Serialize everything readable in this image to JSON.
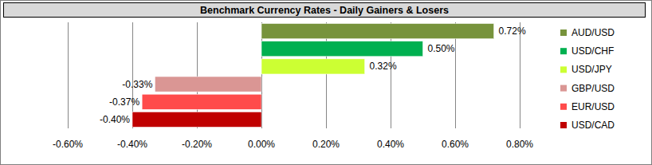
{
  "chart_data": {
    "type": "bar",
    "title": "Benchmark Currency Rates - Daily Gainers & Losers",
    "orientation": "horizontal",
    "categories": [
      "AUD/USD",
      "USD/CHF",
      "USD/JPY",
      "GBP/USD",
      "EUR/USD",
      "USD/CAD"
    ],
    "values": [
      0.72,
      0.5,
      0.32,
      -0.33,
      -0.37,
      -0.4
    ],
    "value_labels": [
      "0.72%",
      "0.50%",
      "0.32%",
      "-0.33%",
      "-0.37%",
      "-0.40%"
    ],
    "colors": [
      "#77933c",
      "#00b050",
      "#ccff33",
      "#da9694",
      "#ff4b4b",
      "#c00000"
    ],
    "xlim": [
      -0.6,
      0.8
    ],
    "xticks": [
      {
        "value": -0.6,
        "label": "-0.60%"
      },
      {
        "value": -0.4,
        "label": "-0.40%"
      },
      {
        "value": -0.2,
        "label": "-0.20%"
      },
      {
        "value": 0,
        "label": "0.00%"
      },
      {
        "value": 0.2,
        "label": "0.20%"
      },
      {
        "value": 0.4,
        "label": "0.40%"
      },
      {
        "value": 0.6,
        "label": "0.60%"
      },
      {
        "value": 0.8,
        "label": "0.80%"
      }
    ],
    "grid": true,
    "data_labels": true,
    "tick_labels": "x",
    "legend": "right"
  }
}
